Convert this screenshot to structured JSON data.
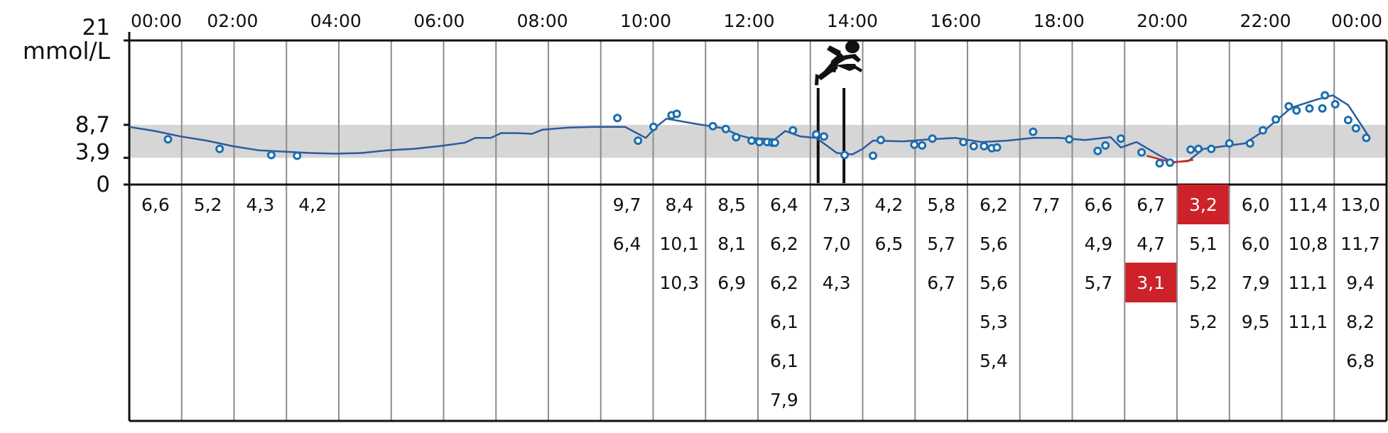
{
  "chart_data": {
    "type": "line",
    "ylabel": "mmol/L",
    "ylim": [
      0,
      21
    ],
    "target_range": [
      3.9,
      8.7
    ],
    "y_ticks": [
      "21",
      "8,7",
      "3,9",
      "0"
    ],
    "x_ticks": [
      "00:00",
      "02:00",
      "04:00",
      "06:00",
      "08:00",
      "10:00",
      "12:00",
      "14:00",
      "16:00",
      "18:00",
      "20:00",
      "22:00",
      "00:00"
    ],
    "x_range_hours": [
      0,
      24
    ],
    "exercise_window_hours": [
      13.2,
      13.7
    ],
    "colors": {
      "line": "#2c5a9e",
      "marker": "#1b6fae",
      "band": "#d6d6d6",
      "low_line": "#d1291f",
      "highlight": "#cd2229",
      "grid": "#8c8c8c",
      "frame": "#111111"
    },
    "series": [
      {
        "points": [
          [
            0.0,
            8.4
          ],
          [
            0.5,
            7.8
          ],
          [
            1.0,
            7.0
          ],
          [
            1.5,
            6.4
          ],
          [
            2.0,
            5.6
          ],
          [
            2.5,
            5.0
          ],
          [
            3.0,
            4.8
          ],
          [
            3.5,
            4.6
          ],
          [
            4.0,
            4.5
          ],
          [
            4.5,
            4.6
          ],
          [
            5.0,
            5.0
          ],
          [
            5.5,
            5.2
          ],
          [
            6.0,
            5.6
          ],
          [
            6.5,
            6.1
          ],
          [
            6.7,
            6.8
          ],
          [
            7.0,
            6.8
          ],
          [
            7.2,
            7.5
          ],
          [
            7.5,
            7.5
          ],
          [
            7.8,
            7.4
          ],
          [
            8.0,
            8.0
          ],
          [
            8.5,
            8.3
          ],
          [
            9.0,
            8.4
          ],
          [
            9.6,
            8.4
          ],
          [
            9.9,
            7.2
          ],
          [
            10.0,
            6.8
          ],
          [
            10.2,
            8.4
          ],
          [
            10.4,
            9.6
          ],
          [
            11.0,
            8.8
          ],
          [
            11.5,
            8.2
          ],
          [
            11.8,
            7.2
          ],
          [
            12.0,
            6.8
          ],
          [
            12.5,
            6.6
          ],
          [
            12.7,
            7.8
          ],
          [
            13.0,
            7.0
          ],
          [
            13.3,
            6.8
          ],
          [
            13.7,
            4.6
          ],
          [
            14.0,
            4.4
          ],
          [
            14.2,
            5.2
          ],
          [
            14.4,
            6.4
          ],
          [
            15.0,
            6.3
          ],
          [
            15.5,
            6.6
          ],
          [
            16.0,
            6.8
          ],
          [
            16.5,
            6.2
          ],
          [
            17.0,
            6.4
          ],
          [
            17.5,
            6.8
          ],
          [
            18.0,
            6.8
          ],
          [
            18.5,
            6.5
          ],
          [
            19.0,
            6.9
          ],
          [
            19.2,
            5.4
          ],
          [
            19.5,
            6.2
          ],
          [
            20.0,
            4.0
          ],
          [
            20.2,
            3.3
          ],
          [
            20.5,
            3.4
          ],
          [
            20.8,
            5.2
          ],
          [
            21.2,
            5.6
          ],
          [
            21.6,
            6.0
          ],
          [
            22.0,
            8.0
          ],
          [
            22.5,
            11.2
          ],
          [
            23.0,
            12.4
          ],
          [
            23.3,
            13.0
          ],
          [
            23.6,
            11.6
          ],
          [
            24.0,
            7.0
          ]
        ],
        "markers": [
          [
            0.75,
            6.6
          ],
          [
            1.75,
            5.2
          ],
          [
            2.75,
            4.3
          ],
          [
            3.25,
            4.2
          ],
          [
            9.45,
            9.7
          ],
          [
            9.85,
            6.4
          ],
          [
            10.15,
            8.4
          ],
          [
            10.5,
            10.1
          ],
          [
            10.6,
            10.3
          ],
          [
            11.3,
            8.5
          ],
          [
            11.55,
            8.1
          ],
          [
            11.75,
            6.9
          ],
          [
            12.05,
            6.4
          ],
          [
            12.2,
            6.2
          ],
          [
            12.35,
            6.2
          ],
          [
            12.45,
            6.1
          ],
          [
            12.5,
            6.1
          ],
          [
            12.85,
            7.9
          ],
          [
            13.3,
            7.3
          ],
          [
            13.45,
            7.0
          ],
          [
            13.85,
            4.3
          ],
          [
            14.4,
            4.2
          ],
          [
            14.55,
            6.5
          ],
          [
            15.2,
            5.8
          ],
          [
            15.35,
            5.7
          ],
          [
            15.55,
            6.7
          ],
          [
            16.15,
            6.2
          ],
          [
            16.35,
            5.6
          ],
          [
            16.55,
            5.6
          ],
          [
            16.7,
            5.3
          ],
          [
            16.8,
            5.4
          ],
          [
            17.5,
            7.7
          ],
          [
            18.2,
            6.6
          ],
          [
            18.75,
            4.9
          ],
          [
            18.9,
            5.7
          ],
          [
            19.2,
            6.7
          ],
          [
            19.6,
            4.7
          ],
          [
            19.95,
            3.1
          ],
          [
            20.15,
            3.2
          ],
          [
            20.55,
            5.1
          ],
          [
            20.7,
            5.2
          ],
          [
            20.95,
            5.2
          ],
          [
            21.3,
            6.0
          ],
          [
            21.7,
            6.0
          ],
          [
            21.95,
            7.9
          ],
          [
            22.2,
            9.5
          ],
          [
            22.45,
            11.4
          ],
          [
            22.6,
            10.8
          ],
          [
            22.85,
            11.1
          ],
          [
            23.1,
            11.1
          ],
          [
            23.15,
            13.0
          ],
          [
            23.35,
            11.7
          ],
          [
            23.6,
            9.4
          ],
          [
            23.75,
            8.2
          ],
          [
            23.95,
            6.8
          ]
        ]
      }
    ],
    "table": {
      "highlights": [
        [
          20,
          0
        ],
        [
          19,
          2
        ]
      ],
      "columns": [
        [
          "6,6"
        ],
        [
          "5,2"
        ],
        [
          "4,3"
        ],
        [
          "4,2"
        ],
        [],
        [],
        [],
        [],
        [],
        [
          "9,7",
          "6,4"
        ],
        [
          "8,4",
          "10,1",
          "10,3"
        ],
        [
          "8,5",
          "8,1",
          "6,9"
        ],
        [
          "6,4",
          "6,2",
          "6,2",
          "6,1",
          "6,1",
          "7,9"
        ],
        [
          "7,3",
          "7,0",
          "4,3"
        ],
        [
          "4,2",
          "6,5"
        ],
        [
          "5,8",
          "5,7",
          "6,7"
        ],
        [
          "6,2",
          "5,6",
          "5,6",
          "5,3",
          "5,4"
        ],
        [
          "7,7"
        ],
        [
          "6,6",
          "4,9",
          "5,7"
        ],
        [
          "6,7",
          "4,7",
          "3,1"
        ],
        [
          "3,2",
          "5,1",
          "5,2",
          "5,2"
        ],
        [
          "6,0",
          "6,0",
          "7,9",
          "9,5"
        ],
        [
          "11,4",
          "10,8",
          "11,1",
          "11,1"
        ],
        [
          "13,0",
          "11,7",
          "9,4",
          "8,2",
          "6,8"
        ]
      ]
    }
  }
}
